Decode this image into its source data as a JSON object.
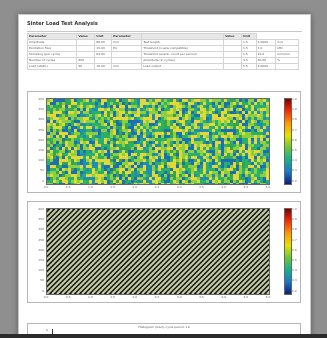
{
  "report": {
    "title": "Sinter Load Test Analysis",
    "table_header": [
      "Parameter",
      "Value",
      "Unit",
      "Parameter",
      "",
      "Value",
      "Unit"
    ],
    "rows": [
      [
        "Amplitude",
        "",
        "86.00",
        "mm",
        "Test length",
        "",
        "1.5",
        "1.0000",
        "mm"
      ],
      [
        "Excitation freq",
        "",
        "15.00",
        "Hz",
        "Threshold (x-axis compatible)",
        "",
        "1.5",
        "1.0",
        "kHz"
      ],
      [
        "Sampling (per cycle)",
        "",
        "64.00",
        "",
        "Threshold (event, count per period)",
        "",
        "1.5",
        "10.0",
        "mm/mm"
      ],
      [
        "Number of cycles",
        "600",
        "",
        "",
        "Amplitude (in cycles)",
        "",
        "3.5",
        "50.00",
        "%"
      ],
      [
        "Load (static)",
        "50",
        "16.00",
        "mm",
        "Load output",
        "",
        "1.5",
        "4.0000",
        ""
      ]
    ]
  },
  "plot1": {
    "y_ticks": [
      "400",
      "350",
      "300",
      "250",
      "200",
      "150",
      "100",
      "50",
      "0"
    ],
    "x_ticks": [
      "0.0",
      "0.5",
      "1.0",
      "1.5",
      "2.0",
      "2.5",
      "3.0",
      "3.5",
      "4.0",
      "4.5",
      "5.0"
    ],
    "cbar_ticks": [
      "1.0",
      "0.9",
      "0.8",
      "0.7",
      "0.6",
      "0.5",
      "0.4",
      "0.3",
      "0.2"
    ]
  },
  "plot2": {
    "y_ticks": [
      "400",
      "350",
      "300",
      "250",
      "200",
      "150",
      "100",
      "50",
      "0"
    ],
    "x_ticks": [
      "0.0",
      "0.5",
      "1.0",
      "1.5",
      "2.0",
      "2.5",
      "3.0",
      "3.5",
      "4.0",
      "4.5",
      "5.0"
    ],
    "cbar_ticks": [
      "1.0",
      "0.9",
      "0.8",
      "0.7",
      "0.6",
      "0.5",
      "0.4",
      "0.3",
      "0.2"
    ]
  },
  "plot3": {
    "title": "Histogram (load), cycle period: 19",
    "y_top": "1"
  }
}
